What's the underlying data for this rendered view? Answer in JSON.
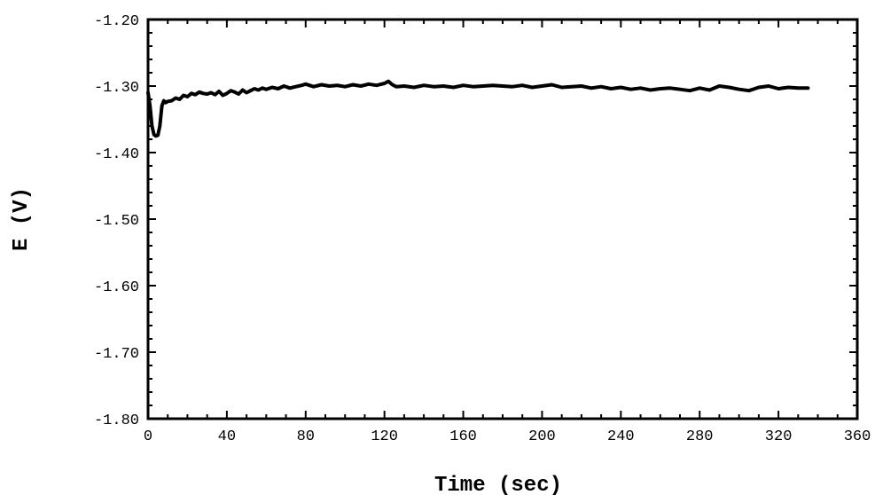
{
  "chart_data": {
    "type": "line",
    "title": "",
    "xlabel": "Time (sec)",
    "ylabel": "E (V)",
    "xlim": [
      0,
      360
    ],
    "ylim": [
      -1.8,
      -1.2
    ],
    "x_ticks": [
      0,
      40,
      80,
      120,
      160,
      200,
      240,
      280,
      320,
      360
    ],
    "x_tick_labels": [
      "0",
      "40",
      "80",
      "120",
      "160",
      "200",
      "240",
      "280",
      "320",
      "360"
    ],
    "y_ticks": [
      -1.2,
      -1.3,
      -1.4,
      -1.5,
      -1.6,
      -1.7,
      -1.8
    ],
    "y_tick_labels": [
      "-1.20",
      "-1.30",
      "-1.40",
      "-1.50",
      "-1.60",
      "-1.70",
      "-1.80"
    ],
    "grid": false,
    "legend": "none",
    "line_color": "#000000",
    "series": [
      {
        "x": [
          0,
          1,
          2,
          3,
          4,
          5,
          6,
          7,
          8,
          9,
          10,
          12,
          14,
          16,
          18,
          20,
          22,
          24,
          26,
          28,
          30,
          32,
          34,
          36,
          38,
          40,
          42,
          44,
          46,
          48,
          50,
          52,
          54,
          56,
          58,
          60,
          63,
          66,
          69,
          72,
          75,
          78,
          80,
          84,
          88,
          92,
          96,
          100,
          104,
          108,
          112,
          116,
          120,
          122,
          124,
          126,
          130,
          135,
          140,
          145,
          150,
          155,
          160,
          165,
          170,
          175,
          180,
          185,
          190,
          195,
          200,
          205,
          210,
          215,
          220,
          225,
          230,
          235,
          240,
          245,
          250,
          255,
          260,
          265,
          270,
          275,
          280,
          285,
          290,
          295,
          300,
          305,
          310,
          315,
          320,
          325,
          330,
          335
        ],
        "y": [
          -1.31,
          -1.33,
          -1.36,
          -1.373,
          -1.375,
          -1.374,
          -1.36,
          -1.33,
          -1.322,
          -1.325,
          -1.323,
          -1.322,
          -1.318,
          -1.32,
          -1.314,
          -1.316,
          -1.311,
          -1.313,
          -1.309,
          -1.311,
          -1.312,
          -1.31,
          -1.313,
          -1.308,
          -1.314,
          -1.311,
          -1.307,
          -1.309,
          -1.312,
          -1.306,
          -1.31,
          -1.307,
          -1.304,
          -1.306,
          -1.303,
          -1.305,
          -1.302,
          -1.304,
          -1.3,
          -1.303,
          -1.301,
          -1.299,
          -1.297,
          -1.301,
          -1.298,
          -1.3,
          -1.299,
          -1.301,
          -1.298,
          -1.3,
          -1.297,
          -1.299,
          -1.296,
          -1.293,
          -1.298,
          -1.301,
          -1.3,
          -1.302,
          -1.299,
          -1.301,
          -1.3,
          -1.302,
          -1.299,
          -1.301,
          -1.3,
          -1.299,
          -1.3,
          -1.301,
          -1.299,
          -1.302,
          -1.3,
          -1.298,
          -1.302,
          -1.301,
          -1.3,
          -1.303,
          -1.301,
          -1.304,
          -1.302,
          -1.305,
          -1.303,
          -1.306,
          -1.304,
          -1.303,
          -1.305,
          -1.307,
          -1.303,
          -1.306,
          -1.3,
          -1.302,
          -1.305,
          -1.307,
          -1.302,
          -1.3,
          -1.304,
          -1.302,
          -1.303,
          -1.303
        ]
      }
    ]
  }
}
